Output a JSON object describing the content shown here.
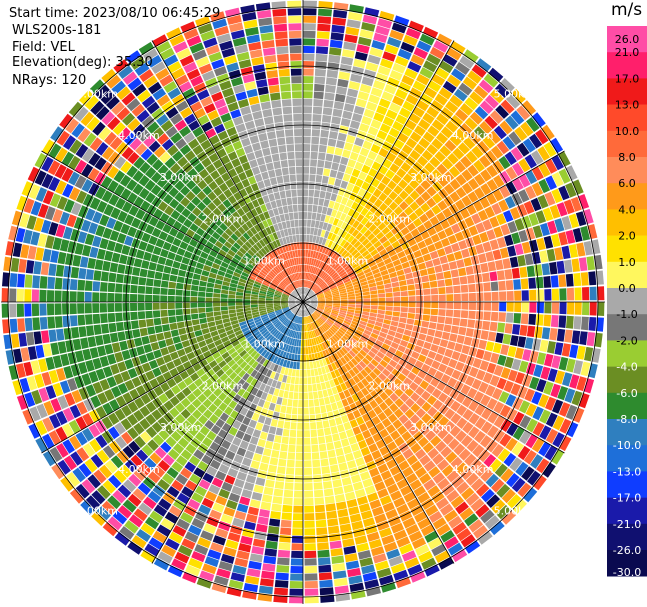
{
  "info": {
    "start_time": "Start time: 2023/08/10 06:45:29",
    "instrument": "WLS200s-181",
    "field": "Field: VEL",
    "elevation": "Elevation(deg): 35.30",
    "nrays": "NRays: 120"
  },
  "chart_data": {
    "type": "heatmap",
    "projection": "polar-ppi",
    "rays": 120,
    "range_rings_km": [
      1.0,
      2.0,
      3.0,
      4.0,
      5.0
    ],
    "range_ring_labels": [
      "1.00km",
      "2.00km",
      "3.00km",
      "4.00km",
      "5.00km"
    ],
    "colorbar": {
      "unit": "m/s",
      "ticks": [
        "26.0",
        "21.0",
        "17.0",
        "13.0",
        "10.0",
        "8.0",
        "6.0",
        "4.0",
        "2.0",
        "1.0",
        "0.0",
        "-1.0",
        "-2.0",
        "-4.0",
        "-6.0",
        "-8.0",
        "-10.0",
        "-13.0",
        "-17.0",
        "-21.0",
        "-26.0",
        "-30.0"
      ],
      "colors": [
        "#ff4da6",
        "#ff1f6b",
        "#f01a1a",
        "#ff4a2a",
        "#ff6a3a",
        "#ff8c5a",
        "#ff9a1a",
        "#ffbf00",
        "#ffe100",
        "#fff75e",
        "#a9a9a9",
        "#777777",
        "#9acd32",
        "#6b8e23",
        "#2e8b2e",
        "#2f7fbf",
        "#1e6fd9",
        "#0f3dff",
        "#1a1aaa",
        "#101070",
        "#0a0a50"
      ]
    },
    "summary": "Doppler velocity PPI; positive (yellow/orange) toward the east, negative (green/blue) toward the south-west; noisy speckle beyond ~3.5 km"
  }
}
